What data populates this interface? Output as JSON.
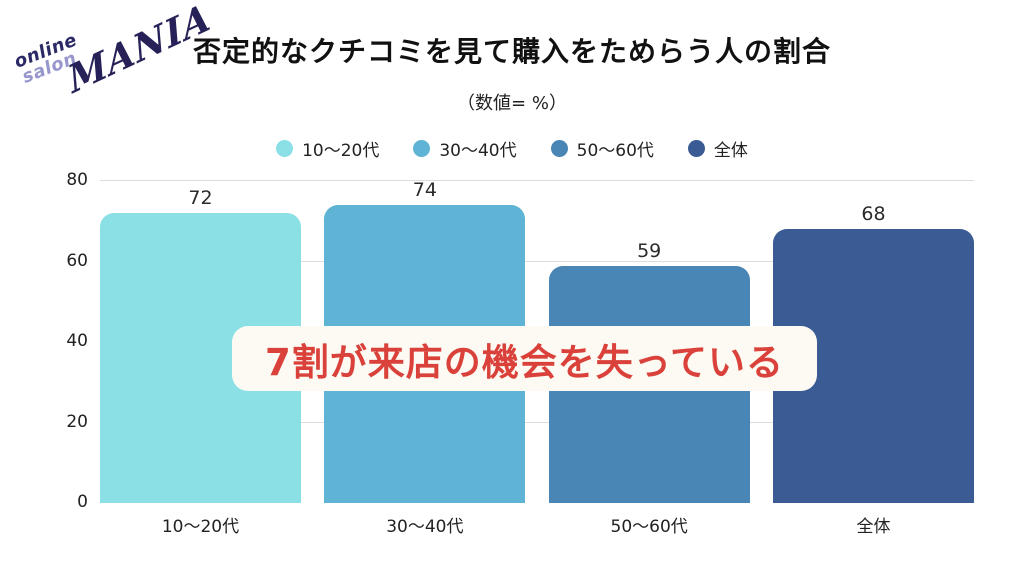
{
  "logo": {
    "line1": "online",
    "line2": "salon",
    "brand": "MANIA"
  },
  "header": {
    "title": "否定的なクチコミを見て購入をためらう人の割合",
    "subtitle": "（数値= %）"
  },
  "chart_data": {
    "type": "bar",
    "title": "否定的なクチコミを見て購入をためらう人の割合",
    "subtitle": "（数値= %）",
    "categories": [
      "10〜20代",
      "30〜40代",
      "50〜60代",
      "全体"
    ],
    "values": [
      72,
      74,
      59,
      68
    ],
    "bar_colors": [
      "#8AE0E4",
      "#5FB3D4",
      "#4A86B5",
      "#3A5B94"
    ],
    "legend": [
      {
        "label": "10〜20代",
        "color": "#8AE0E4"
      },
      {
        "label": "30〜40代",
        "color": "#5FB3D4"
      },
      {
        "label": "50〜60代",
        "color": "#4A86B5"
      },
      {
        "label": "全体",
        "color": "#3A5B94"
      }
    ],
    "xlabel": "",
    "ylabel": "",
    "ylim": [
      0,
      80
    ],
    "yticks": [
      0,
      20,
      40,
      60,
      80
    ],
    "grid": true,
    "legend_position": "top"
  },
  "annotation": {
    "text": "7割が来店の機会を失っている",
    "text_color": "#d9413a",
    "bg_color": "#fcfaf3"
  },
  "colors": {
    "background": "#ffffff",
    "gridline": "#dcdcdc",
    "title_text": "#111111",
    "logo_navy": "#2b2a67",
    "logo_purple": "#9897cd"
  }
}
